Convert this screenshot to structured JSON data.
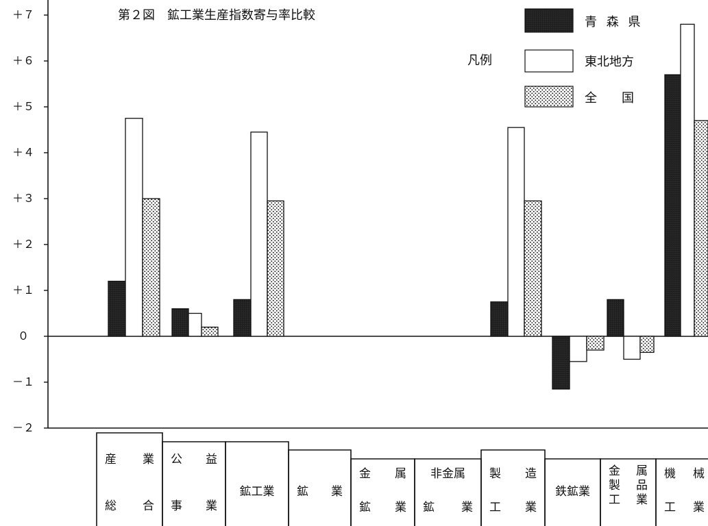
{
  "chart_data": {
    "type": "bar",
    "title": "第２図　鉱工業生産指数寄与率比較",
    "legend_caption": "凡例",
    "legend_position": "top-right",
    "ylim": [
      -2,
      7.5
    ],
    "yticks": [
      {
        "value": 7,
        "label": "＋７"
      },
      {
        "value": 6,
        "label": "＋６"
      },
      {
        "value": 5,
        "label": "＋５"
      },
      {
        "value": 4,
        "label": "＋４"
      },
      {
        "value": 3,
        "label": "＋３"
      },
      {
        "value": 2,
        "label": "＋２"
      },
      {
        "value": 1,
        "label": "＋１"
      },
      {
        "value": 0,
        "label": "０"
      },
      {
        "value": -1,
        "label": "－１"
      },
      {
        "value": -2,
        "label": "－２"
      }
    ],
    "categories": [
      {
        "id": "sangyo-sogo",
        "lines": [
          [
            "産",
            "業"
          ],
          [
            "総",
            "合"
          ]
        ]
      },
      {
        "id": "koeki-jigyo",
        "lines": [
          [
            "公",
            "益"
          ],
          [
            "事",
            "業"
          ]
        ]
      },
      {
        "id": "kokogyo",
        "lines": [
          [
            "鉱工業"
          ]
        ]
      },
      {
        "id": "kogyo",
        "lines": [
          [
            "鉱",
            "業"
          ]
        ]
      },
      {
        "id": "kinzoku-kogyo",
        "lines": [
          [
            "金",
            "属"
          ],
          [
            "鉱",
            "業"
          ]
        ]
      },
      {
        "id": "hikinzoku-kogyo",
        "lines": [
          [
            "非金属"
          ],
          [
            "鉱",
            "業"
          ]
        ]
      },
      {
        "id": "seizo-kogyo",
        "lines": [
          [
            "製",
            "造"
          ],
          [
            "工",
            "業"
          ]
        ]
      },
      {
        "id": "tekkogyo",
        "lines": [
          [
            "鉄鉱業"
          ]
        ]
      },
      {
        "id": "kinzoku-seihin",
        "lines": [
          [
            "金",
            "属"
          ],
          [
            "製",
            "品"
          ],
          [
            "工",
            "業"
          ]
        ]
      },
      {
        "id": "kikai-kogyo",
        "lines": [
          [
            "機",
            "械"
          ],
          [
            "工",
            "業"
          ]
        ]
      }
    ],
    "series": [
      {
        "name": "青森県",
        "legend_label": "青 森 県",
        "fill": "dark",
        "values": [
          1.2,
          0.6,
          0.8,
          null,
          null,
          null,
          0.75,
          -1.15,
          0.8,
          5.7
        ]
      },
      {
        "name": "東北地方",
        "legend_label": "東北地方",
        "fill": "white",
        "values": [
          4.75,
          0.5,
          4.45,
          null,
          null,
          null,
          4.55,
          -0.55,
          -0.5,
          6.8
        ]
      },
      {
        "name": "全国",
        "legend_label": "全　　国",
        "fill": "dotted",
        "values": [
          3.0,
          0.2,
          2.95,
          null,
          null,
          null,
          2.95,
          -0.3,
          -0.35,
          4.7
        ]
      }
    ]
  }
}
